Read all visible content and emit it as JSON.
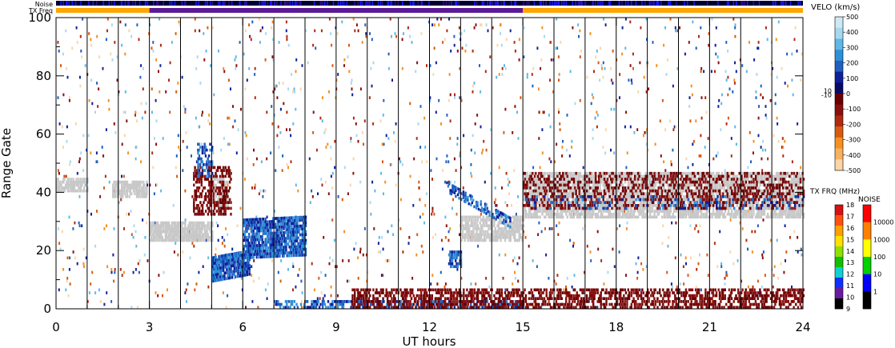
{
  "chart_data": {
    "type": "heatmap",
    "xlabel": "UT hours",
    "ylabel": "Range Gate",
    "x_ticks": [
      "0",
      "3",
      "6",
      "9",
      "12",
      "15",
      "18",
      "21",
      "24"
    ],
    "x_values": [
      0,
      3,
      6,
      9,
      12,
      15,
      18,
      21,
      24
    ],
    "y_ticks": [
      "0",
      "20",
      "40",
      "60",
      "80",
      "100"
    ],
    "y_values": [
      0,
      20,
      40,
      60,
      80,
      100
    ],
    "xlim": [
      0,
      24
    ],
    "ylim": [
      0,
      100
    ],
    "scan_boundaries_ut": [
      1,
      2,
      3,
      4,
      5,
      6,
      7,
      8,
      9,
      10,
      11,
      12,
      13,
      14,
      15,
      16,
      17,
      18,
      19,
      20,
      21,
      22,
      23,
      24
    ],
    "strip_labels": {
      "noise": "Noise",
      "txfreq": "TX Freq"
    },
    "txfreq_segments": [
      {
        "start": 0,
        "end": 3,
        "color": "#ffa500"
      },
      {
        "start": 3,
        "end": 15,
        "color": "#5b1a96"
      },
      {
        "start": 15,
        "end": 24,
        "color": "#ffa500"
      }
    ],
    "velocity_scale": {
      "title": "VELO (km/s)",
      "ticks": [
        "500",
        "400",
        "300",
        "200",
        "100",
        "0",
        "10",
        "-10",
        "-100",
        "-200",
        "-300",
        "-400",
        "-500"
      ],
      "tick_values": [
        500,
        400,
        300,
        200,
        100,
        0,
        10,
        -10,
        -100,
        -200,
        -300,
        -400,
        -500
      ],
      "colors": [
        "#cde9f6",
        "#a8d8f0",
        "#5eb8e8",
        "#2f8fd8",
        "#1f5fc0",
        "#10209a",
        "#0a0a6a",
        "#6a0000",
        "#8a0f0f",
        "#b02a10",
        "#d85a10",
        "#f59020",
        "#f9b060",
        "#fbd5a8"
      ]
    },
    "txfreq_scale": {
      "title": "TX FRQ (MHz)",
      "ticks": [
        "18",
        "17",
        "16",
        "15",
        "14",
        "13",
        "12",
        "11",
        "10",
        "9"
      ],
      "colors": [
        "#d81010",
        "#ff5010",
        "#ffa000",
        "#ffe000",
        "#90e000",
        "#10c000",
        "#10d0d0",
        "#1030ff",
        "#6a1aa0",
        "#000000"
      ]
    },
    "noise_scale": {
      "title": "NOISE",
      "ticks": [
        "10000",
        "1000",
        "100",
        "10",
        "1"
      ],
      "colors": [
        "#ff0000",
        "#ff8000",
        "#ffff00",
        "#00d000",
        "#0000ff",
        "#000000"
      ]
    },
    "ground_scatter_color": "#c8c8c8",
    "echo_regions": [
      {
        "kind": "ground",
        "t0": 0.0,
        "t1": 1.0,
        "g0": 40,
        "g1": 44,
        "slope": 0,
        "density": 0.7
      },
      {
        "kind": "ground",
        "t0": 1.8,
        "t1": 2.9,
        "g0": 38,
        "g1": 43,
        "slope": 0,
        "density": 0.7
      },
      {
        "kind": "ground",
        "t0": 3.0,
        "t1": 5.0,
        "g0": 23,
        "g1": 29,
        "slope": 0,
        "density": 0.8
      },
      {
        "kind": "ground",
        "t0": 5.0,
        "t1": 5.5,
        "g0": 35,
        "g1": 44,
        "slope": 0,
        "density": 0.6
      },
      {
        "kind": "neg",
        "t0": 4.4,
        "t1": 5.6,
        "g0": 32,
        "g1": 48,
        "slope": 0,
        "density": 0.35
      },
      {
        "kind": "pos",
        "t0": 5.0,
        "t1": 6.2,
        "g0": 9,
        "g1": 17,
        "slope": 2.0,
        "density": 0.8
      },
      {
        "kind": "pos",
        "t0": 6.0,
        "t1": 8.0,
        "g0": 17,
        "g1": 30,
        "slope": 0.5,
        "density": 0.75
      },
      {
        "kind": "ground",
        "t0": 13.0,
        "t1": 15.0,
        "g0": 23,
        "g1": 31,
        "slope": 0,
        "density": 0.65
      },
      {
        "kind": "pos",
        "t0": 12.5,
        "t1": 14.6,
        "g0": 40,
        "g1": 43,
        "slope": -6.0,
        "density": 0.45
      },
      {
        "kind": "ground",
        "t0": 15.0,
        "t1": 24.0,
        "g0": 31,
        "g1": 46,
        "slope": 0,
        "density": 0.65
      },
      {
        "kind": "neg",
        "t0": 15.0,
        "t1": 24.0,
        "g0": 34,
        "g1": 46,
        "slope": 0,
        "density": 0.25
      },
      {
        "kind": "pos",
        "t0": 15.0,
        "t1": 24.0,
        "g0": 34,
        "g1": 38,
        "slope": 0,
        "density": 0.12
      },
      {
        "kind": "pos",
        "t0": 7.0,
        "t1": 15.0,
        "g0": 0,
        "g1": 2,
        "slope": 0,
        "density": 0.45
      },
      {
        "kind": "neg",
        "t0": 9.5,
        "t1": 24.0,
        "g0": 0,
        "g1": 6,
        "slope": 0,
        "density": 0.45
      },
      {
        "kind": "pos",
        "t0": 12.6,
        "t1": 13.0,
        "g0": 14,
        "g1": 19,
        "slope": 0,
        "density": 0.6
      },
      {
        "kind": "pos",
        "t0": 4.5,
        "t1": 5.0,
        "g0": 45,
        "g1": 56,
        "slope": 0,
        "density": 0.3
      }
    ]
  }
}
